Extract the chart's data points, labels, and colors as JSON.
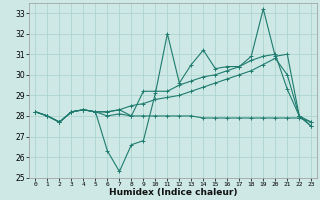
{
  "xlabel": "Humidex (Indice chaleur)",
  "ylabel": "",
  "xlim": [
    -0.5,
    23.5
  ],
  "ylim": [
    25,
    33.5
  ],
  "yticks": [
    25,
    26,
    27,
    28,
    29,
    30,
    31,
    32,
    33
  ],
  "xticks": [
    0,
    1,
    2,
    3,
    4,
    5,
    6,
    7,
    8,
    9,
    10,
    11,
    12,
    13,
    14,
    15,
    16,
    17,
    18,
    19,
    20,
    21,
    22,
    23
  ],
  "bg_color": "#cde8e5",
  "grid_color": "#aed4d0",
  "line_color": "#1e7b6e",
  "lines": [
    [
      28.2,
      28.0,
      27.7,
      28.2,
      28.3,
      28.2,
      26.3,
      25.3,
      26.6,
      26.8,
      29.1,
      32.0,
      29.6,
      30.5,
      31.2,
      30.3,
      30.4,
      30.4,
      30.9,
      33.2,
      30.9,
      31.0,
      28.0,
      27.5
    ],
    [
      28.2,
      28.0,
      27.7,
      28.2,
      28.3,
      28.2,
      28.0,
      28.1,
      28.0,
      29.2,
      29.2,
      29.2,
      29.5,
      29.7,
      29.9,
      30.0,
      30.2,
      30.4,
      30.7,
      30.9,
      31.0,
      29.3,
      28.0,
      27.5
    ],
    [
      28.2,
      28.0,
      27.7,
      28.2,
      28.3,
      28.2,
      28.2,
      28.3,
      28.5,
      28.6,
      28.8,
      28.9,
      29.0,
      29.2,
      29.4,
      29.6,
      29.8,
      30.0,
      30.2,
      30.5,
      30.8,
      30.0,
      28.0,
      27.7
    ],
    [
      28.2,
      28.0,
      27.7,
      28.2,
      28.3,
      28.2,
      28.2,
      28.3,
      28.0,
      28.0,
      28.0,
      28.0,
      28.0,
      28.0,
      27.9,
      27.9,
      27.9,
      27.9,
      27.9,
      27.9,
      27.9,
      27.9,
      27.9,
      27.7
    ]
  ]
}
